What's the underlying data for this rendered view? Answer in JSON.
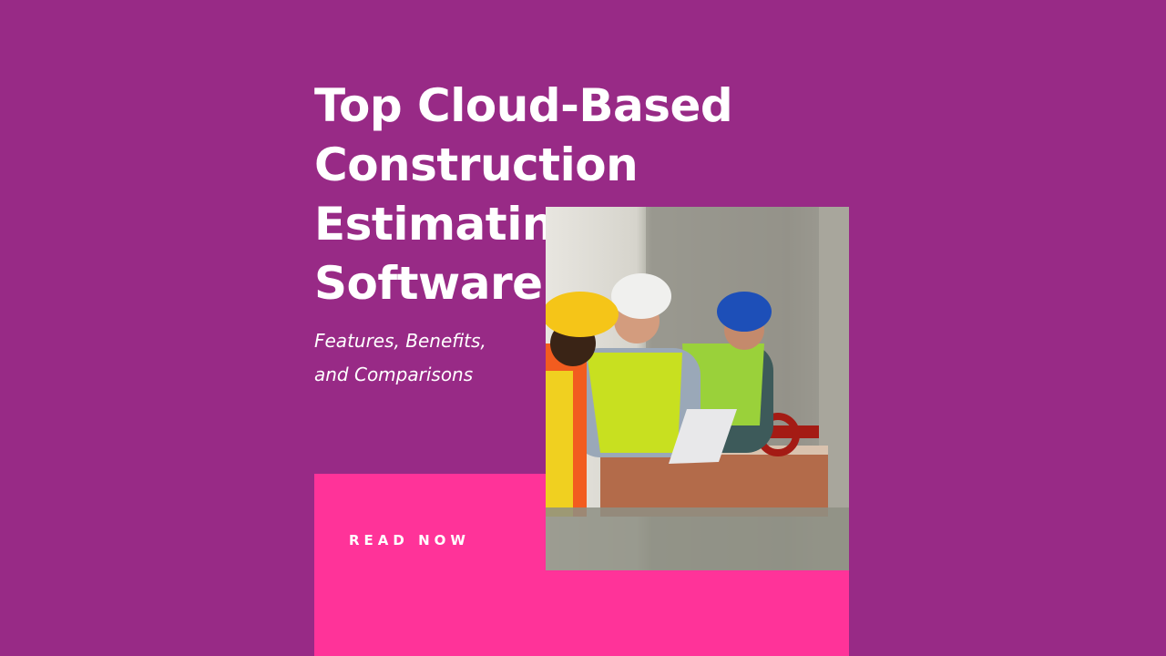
{
  "hero": {
    "title_line1": "Top Cloud-Based",
    "title_line2": "Construction Estimating",
    "title_line3": "Software",
    "subtitle_line1": "Features, Benefits,",
    "subtitle_line2": "and Comparisons",
    "cta_label": "READ NOW"
  },
  "colors": {
    "background": "#982a86",
    "accent": "#ff3399"
  },
  "image": {
    "alt": "construction-workers-with-laptop-photo"
  }
}
